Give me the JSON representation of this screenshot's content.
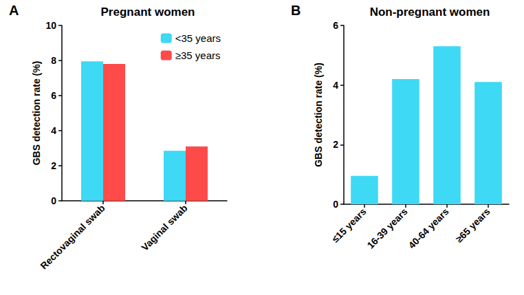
{
  "chart_data": [
    {
      "type": "bar",
      "title": "Pregnant women",
      "annotations": [
        "A"
      ],
      "y_label": "GBS detection rate (%)",
      "categories": [
        "Rectovaginal swab",
        "Vaginal swab"
      ],
      "series": [
        {
          "name": "<35 years",
          "color": "#3DD9F5",
          "values": [
            7.95,
            2.85
          ]
        },
        {
          "name": "≥35 years",
          "color": "#FF4A4A",
          "values": [
            7.8,
            3.1
          ]
        }
      ],
      "ylim": [
        0,
        10
      ],
      "yticks": [
        0,
        2,
        4,
        6,
        8,
        10
      ],
      "grid": false,
      "legend": "upper right"
    },
    {
      "type": "bar",
      "title": "Non-pregnant women",
      "annotations": [
        "B"
      ],
      "y_label": "GBS detection rate (%)",
      "categories": [
        "≤15 years",
        "16-39 years",
        "40-64 years",
        "≥65 years"
      ],
      "values": [
        0.95,
        4.2,
        5.3,
        4.1
      ],
      "color": "#3DD9F5",
      "ylim": [
        0,
        6
      ],
      "yticks": [
        0,
        2,
        4,
        6
      ],
      "grid": false
    }
  ]
}
